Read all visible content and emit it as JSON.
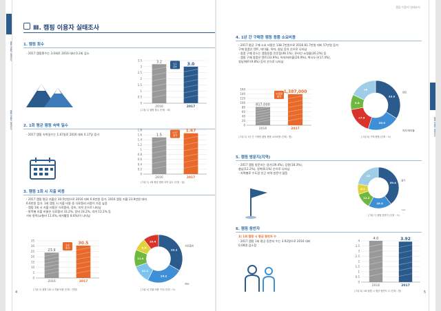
{
  "left_page": {
    "page_number": "4",
    "side_top": "캠핑 이용자 실태조사",
    "side_mid": "캠핑 이용자 실태조사",
    "chapter_title": "Ⅲ. 캠핑 이용자 실태조사",
    "s1": {
      "title": "1. 캠핑 횟수",
      "text": "- 2017 캠핑횟수는 3.0회로 2016 대비 0.2회 감소",
      "caption": "[그림 1] 캠핑 횟수 (단위 : 회)"
    },
    "s2": {
      "title": "2. 1회 평균 캠핑 숙박 일수",
      "text": "- 2017 캠핑 숙박일수는 1.67일로 2016 대비 0.17일 증가",
      "caption": "[그림 2] 1회 평균 캠핑 숙박 일수 (단위 : 일)"
    },
    "s3": {
      "title": "3. 캠핑 1회 시 지출 비용",
      "lines": [
        "- 2017 캠핑 평균 지출은 30.5만원으로 2016 대비 6.6만원 증가, 2016 캠핑 지출 23.9만원 대비",
        "  6.6만원 증가. 1회 캠핑 시 지출 비용 중 식료품비 비중이 가장 높음",
        "- 캠핑 1회 시 지출 비용은 식료품비, 장비, 숙박 순으로 나타남",
        "- 항목별 지출 비율은 식료품비 33.2%, 장비 24.2%, 숙박 12.2% 등",
        "  기타 항목(교통비 11.4%, 레저활동 8.6%)이 나타남"
      ],
      "caption": "[그림 3] 캠핑 1회 시 지출 비용 (단위 : 만원)",
      "caption2": "[그림 4] 지출 비용 구성 (단위 : %)"
    }
  },
  "right_page": {
    "page_number": "5",
    "running_head": "캠핑 이용자 실태조사",
    "side_label": "캠핑 이용자 실태조사",
    "s4": {
      "title": "4. 1년 간 구매한 캠핑 용품 소요비용",
      "lines": [
        "- 2017 평균 구매 소요 비용은 138.7만원으로 2016 81.7만원 대비 57만원 증가",
        "  구매 용품은 텐트, 테이블, 의자, 침낭 등의 순으로 나타남",
        "- 용품 구매 장소는 캠핑용품 전문점(46.1%), 온라인 쇼핑몰(26.2%) 등",
        "- 캠핑 구매 용품은 텐트(33.9%), 의자/테이블(20.9%), 취사도구(17.4%),",
        "  침낭/매트(9.8%) 등의 순으로 나타남"
      ],
      "caption": "[그림 5] 1년 간 구매한 캠핑 용품 소요비용 (단위 : 원)",
      "caption2": "[그림 6] 구매 용품 (단위 : %)"
    },
    "s5": {
      "title": "5. 캠핑 방문지(지역)",
      "lines": [
        "- 2017 캠핑 방문지는 경기(39.4%), 강원(18.3%),",
        "  충남(12.2%), 경북(8.1%) 순으로 나타남",
        "- 지역별로 수도권 인근 지역 방문이 많음"
      ],
      "caption": "[그림 7] 캠핑 방문지 (단위 : %)"
    },
    "s6": {
      "title": "6. 캠핑 동반자",
      "subtitle": "1) 1회 캠핑 시 평균 동반자 수",
      "lines": [
        "- 2017 캠핑 1회 평균 동반자 수는 3.92명으로 2016 대비",
        "  0.08명 감소함"
      ],
      "caption": "[그림 8] 1회 캠핑 시 평균 동반자 수 (단위 : 명)"
    }
  },
  "chart_data": [
    {
      "type": "bar",
      "title": "캠핑 횟수",
      "categories": [
        "2016",
        "2017"
      ],
      "values": [
        3.2,
        3.0
      ],
      "value_labels": [
        "3.2",
        "3.0"
      ],
      "ylim": [
        0,
        3.5
      ],
      "y_ticks": [
        "0",
        "0.5",
        "1",
        "1.5",
        "2",
        "2.5",
        "3",
        "3.5"
      ],
      "delta_badge": "0.2 감소",
      "colors": [
        "#999999",
        "#2b5a8c"
      ]
    },
    {
      "type": "bar",
      "title": "1회 평균 캠핑 숙박 일수",
      "categories": [
        "2016",
        "2017"
      ],
      "values": [
        1.5,
        1.67
      ],
      "value_labels": [
        "1.5",
        "1.67"
      ],
      "ylim": [
        0,
        1.8
      ],
      "y_ticks": [
        "0",
        "0.2",
        "0.4",
        "0.6",
        "0.8",
        "1",
        "1.2",
        "1.4",
        "1.6",
        "1.8"
      ],
      "delta_badge": "0.17 증가",
      "colors": [
        "#999999",
        "#e8692a"
      ]
    },
    {
      "type": "bar",
      "title": "캠핑 1회 시 지출 비용",
      "categories": [
        "2016",
        "2017"
      ],
      "values": [
        23.9,
        30.5
      ],
      "value_labels": [
        "23.9",
        "30.5"
      ],
      "ylim": [
        0,
        35
      ],
      "y_ticks": [
        "0",
        "5",
        "10",
        "15",
        "20",
        "25",
        "30",
        "35"
      ],
      "delta_badge": "6.6 증가",
      "colors": [
        "#999999",
        "#e8692a"
      ]
    },
    {
      "type": "pie",
      "title": "지출 비용 구성",
      "labels": [
        "식료품비",
        "장비",
        "숙박",
        "교통비",
        "레저",
        "기타"
      ],
      "values": [
        33.2,
        24.2,
        12.2,
        11.4,
        8.6,
        10.4
      ],
      "colors": [
        "#2b5a8c",
        "#3f8fd6",
        "#7ec3ef",
        "#6fb83f",
        "#e0d23a",
        "#d8342c"
      ]
    },
    {
      "type": "bar",
      "title": "1년 간 구매한 캠핑 용품 소요비용",
      "categories": [
        "2016",
        "2017"
      ],
      "values": [
        817000,
        1387000
      ],
      "value_labels": [
        "817,000",
        "1,387,000"
      ],
      "ylim": [
        0,
        1600000
      ],
      "y_ticks": [
        "0",
        "20",
        "40",
        "60",
        "80",
        "100",
        "120",
        "140",
        "160"
      ],
      "delta_badge": "57만원 증가",
      "colors": [
        "#999999",
        "#e8692a"
      ]
    },
    {
      "type": "pie",
      "title": "구매 용품",
      "labels": [
        "텐트",
        "의자/테이블",
        "취사도구",
        "침낭/매트",
        "기타"
      ],
      "values": [
        33.9,
        20.9,
        17.4,
        9.8,
        18.0
      ],
      "colors": [
        "#2b5a8c",
        "#3f8fd6",
        "#d8342c",
        "#6fb83f",
        "#9fcde8"
      ]
    },
    {
      "type": "pie",
      "title": "캠핑 방문지",
      "labels": [
        "경기",
        "강원",
        "충남",
        "경북",
        "기타"
      ],
      "values": [
        39.4,
        18.3,
        12.2,
        8.1,
        22.0
      ],
      "colors": [
        "#2b5a8c",
        "#3f8fd6",
        "#6fb83f",
        "#e0d23a",
        "#9fcde8"
      ]
    },
    {
      "type": "bar",
      "title": "1회 캠핑 시 평균 동반자 수",
      "categories": [
        "2016",
        "2017"
      ],
      "values": [
        4.0,
        3.92
      ],
      "value_labels": [
        "4.0",
        "3.92"
      ],
      "ylim": [
        0,
        4
      ],
      "y_ticks": [
        "0",
        "0.5",
        "1",
        "1.5",
        "2",
        "2.5",
        "3",
        "3.5",
        "4"
      ],
      "colors": [
        "#999999",
        "#2b5a8c"
      ]
    }
  ]
}
